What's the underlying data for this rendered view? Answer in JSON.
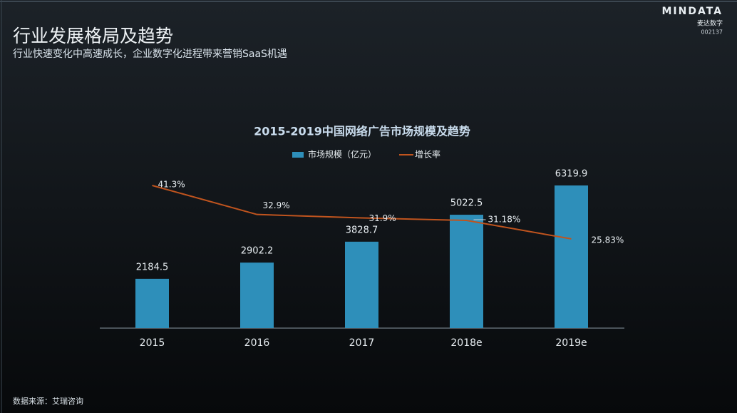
{
  "header": {
    "title": "行业发展格局及趋势",
    "subtitle": "行业快速变化中高速成长，企业数字化进程带来营销SaaS机遇",
    "logo": "MINDATA",
    "logo_cn": "麦达数字",
    "stock_code": "002137"
  },
  "chart_data": {
    "type": "bar-line",
    "title": "2015-2019中国网络广告市场规模及趋势",
    "categories": [
      "2015",
      "2016",
      "2017",
      "2018e",
      "2019e"
    ],
    "series": [
      {
        "name": "市场规模（亿元）",
        "type": "bar",
        "color": "#2e8fba",
        "values": [
          2184.5,
          2902.2,
          3828.7,
          5022.5,
          6319.9
        ]
      },
      {
        "name": "增长率",
        "type": "line",
        "axis": "y2",
        "color": "#c0541e",
        "values": [
          41.3,
          32.9,
          31.9,
          31.18,
          25.83
        ],
        "value_labels": [
          "41.3%",
          "32.9%",
          "31.9%",
          "31.18%",
          "25.83%"
        ]
      }
    ]
  },
  "footer": {
    "source": "数据来源：艾瑞咨询"
  }
}
